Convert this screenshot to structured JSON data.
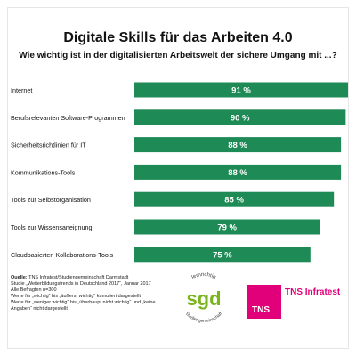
{
  "title": "Digitale Skills für das Arbeiten 4.0",
  "subtitle": "Wie wichtig ist in der digitalisierten Arbeitswelt der sichere Umgang mit ...?",
  "colors": {
    "bar": "#1e8a55",
    "bar_label": "#ffffff",
    "brand_magenta": "#e2007a",
    "sgd_green": "#7ab51d"
  },
  "chart_data": {
    "type": "bar",
    "orientation": "horizontal",
    "categories": [
      "Internet",
      "Berufsrelevanten Software-Programmen",
      "Sicherheitsrichtlinien für IT",
      "Kommunikations-Tools",
      "Tools zur Selbstorganisation",
      "Tools zur Wissensaneignung",
      "Cloudbasierten Kollaborations-Tools"
    ],
    "values": [
      91,
      90,
      88,
      88,
      85,
      79,
      75
    ],
    "value_labels": [
      "91 %",
      "90 %",
      "88 %",
      "88 %",
      "85 %",
      "79 %",
      "75 %"
    ],
    "unit": "%",
    "xlim": [
      0,
      100
    ],
    "grid": false,
    "legend": "none"
  },
  "source": {
    "label": "Quelle:",
    "text": "TNS Infratest/Studiengemeinschaft Darmstadt",
    "lines": [
      "Studie „Weiterbildungstrends in Deutschland 2017“, Januar 2017",
      "Alle Befragten n=300",
      "Werte für „wichtig“ bis „äußerst wichtig“ kumuliert dargestellt",
      "Werte für „weniger wichtig“ bis „überhaupt nicht wichtig“ und „keine",
      "Angaben“ nicht dargestellt"
    ]
  },
  "logos": {
    "sgd_text": "sgd",
    "sgd_ring_top": "lernrichtig",
    "sgd_ring_bottom": "Studiengemeinschaft",
    "tns_square_text": "TNS",
    "tns_name": "TNS Infratest"
  }
}
